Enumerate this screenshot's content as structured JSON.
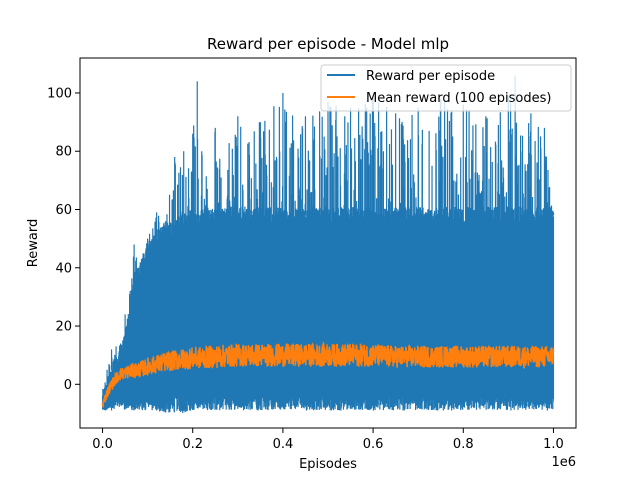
{
  "chart_data": {
    "type": "line",
    "title": "Reward per episode - Model mlp",
    "xlabel": "Episodes",
    "ylabel": "Reward",
    "x_scale_label": "1e6",
    "xlim": [
      -50000,
      1050000
    ],
    "ylim": [
      -15,
      112
    ],
    "xticks": [
      0,
      200000,
      400000,
      600000,
      800000,
      1000000
    ],
    "xtick_labels": [
      "0.0",
      "0.2",
      "0.4",
      "0.6",
      "0.8",
      "1.0"
    ],
    "yticks": [
      0,
      20,
      40,
      60,
      80,
      100
    ],
    "ytick_labels": [
      "0",
      "20",
      "40",
      "60",
      "80",
      "100"
    ],
    "grid": false,
    "legend_position": "top-right",
    "series": [
      {
        "name": "Reward per episode",
        "color": "#1f77b4",
        "x": [
          0,
          10000,
          20000,
          30000,
          40000,
          50000,
          60000,
          70000,
          80000,
          90000,
          100000,
          120000,
          140000,
          160000,
          180000,
          200000,
          210000,
          220000,
          250000,
          300000,
          350000,
          400000,
          450000,
          500000,
          550000,
          600000,
          650000,
          700000,
          750000,
          800000,
          850000,
          900000,
          915000,
          950000,
          980000,
          1000000
        ],
        "max": [
          -4,
          5,
          12,
          13,
          14,
          24,
          31,
          48,
          40,
          45,
          50,
          59,
          56,
          78,
          80,
          86,
          104,
          80,
          88,
          92,
          90,
          100,
          92,
          97,
          95,
          99,
          93,
          95,
          98,
          96,
          92,
          99,
          106,
          93,
          88,
          59
        ],
        "min": [
          -9,
          -9,
          -9,
          -8,
          -8,
          -9,
          -9,
          -9,
          -9,
          -9,
          -9,
          -9,
          -10,
          -10,
          -10,
          -9,
          -9,
          -9,
          -9,
          -9,
          -9,
          -9,
          -9,
          -9,
          -9,
          -9,
          -9,
          -9,
          -9,
          -9,
          -9,
          -9,
          -9,
          -9,
          -9,
          -9
        ],
        "typical_high": [
          -5,
          1,
          5,
          8,
          10,
          15,
          25,
          35,
          40,
          42,
          45,
          50,
          52,
          55,
          56,
          57,
          57,
          58,
          58,
          58,
          58,
          58,
          58,
          58,
          58,
          58,
          58,
          58,
          58,
          58,
          58,
          58,
          58,
          58,
          58,
          58
        ],
        "typical_low": [
          -8,
          -7,
          -6,
          -5,
          -5,
          -5,
          -5,
          -5,
          -5,
          -5,
          -5,
          -5,
          -5,
          -4,
          -4,
          -4,
          -4,
          -4,
          -4,
          -4,
          -4,
          -4,
          -4,
          -4,
          -4,
          -4,
          -4,
          -4,
          -4,
          -4,
          -4,
          -4,
          -4,
          -4,
          -4,
          -4
        ]
      },
      {
        "name": "Mean reward (100 episodes)",
        "color": "#ff7f0e",
        "x": [
          0,
          10000,
          20000,
          30000,
          40000,
          50000,
          60000,
          80000,
          100000,
          120000,
          150000,
          200000,
          250000,
          300000,
          350000,
          400000,
          450000,
          500000,
          550000,
          600000,
          650000,
          700000,
          750000,
          800000,
          850000,
          900000,
          950000,
          1000000
        ],
        "mean": [
          -7,
          -3,
          0,
          2,
          3.5,
          4,
          4.5,
          5,
          6,
          7,
          8,
          9,
          9.5,
          10,
          10,
          10,
          10,
          10,
          10,
          10,
          9.5,
          9.5,
          9.5,
          9.5,
          9.5,
          9.5,
          9.5,
          9.5
        ],
        "spread": [
          1.5,
          1.8,
          2,
          2,
          2.2,
          2.2,
          2.5,
          2.8,
          3,
          3.2,
          3.5,
          3.8,
          4,
          4,
          4,
          4,
          4,
          4,
          4,
          4,
          3.8,
          3.8,
          3.8,
          3.8,
          3.8,
          3.8,
          3.8,
          3.8
        ]
      }
    ]
  }
}
